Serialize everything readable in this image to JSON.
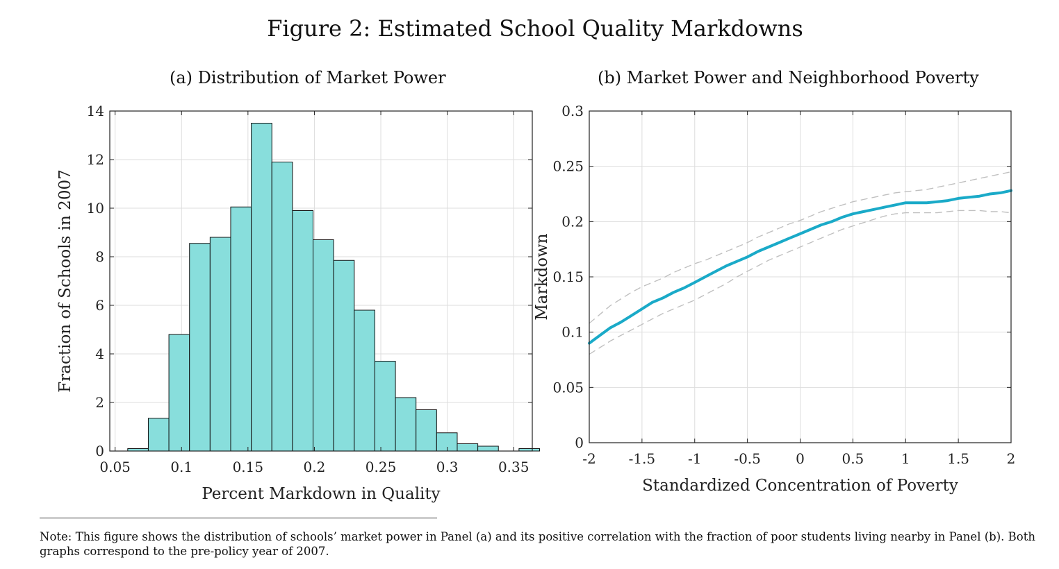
{
  "figure_title": "Figure 2: Estimated School Quality Markdowns",
  "note": "Note: This figure shows the distribution of schools’ market power in Panel (a) and its positive correlation with the fraction of poor students living nearby in Panel (b). Both graphs correspond to the pre-policy year of 2007.",
  "colors": {
    "bar_fill": "#88dedc",
    "bar_edge": "#111111",
    "line": "#1aaac8",
    "band": "#c0c0c0",
    "grid": "#dddddd"
  },
  "chart_data": [
    {
      "panel": "a",
      "type": "bar",
      "title": "(a) Distribution of Market Power",
      "xlabel": "Percent Markdown in Quality",
      "ylabel": "Fraction of Schools in 2007",
      "bin_width": 0.0155,
      "bin_left_edges": [
        0.0595,
        0.075,
        0.0905,
        0.106,
        0.1215,
        0.137,
        0.1525,
        0.168,
        0.1835,
        0.199,
        0.2145,
        0.23,
        0.2455,
        0.261,
        0.2765,
        0.292,
        0.3075,
        0.323,
        0.3385,
        0.354
      ],
      "values": [
        0.1,
        1.35,
        4.8,
        8.55,
        8.8,
        10.05,
        13.5,
        11.9,
        9.9,
        8.7,
        7.85,
        5.8,
        3.7,
        2.2,
        1.7,
        0.75,
        0.3,
        0.2,
        0,
        0.1
      ],
      "xlim": [
        0.046,
        0.364
      ],
      "ylim": [
        0,
        14
      ],
      "xticks": [
        0.05,
        0.1,
        0.15,
        0.2,
        0.25,
        0.3,
        0.35
      ],
      "xtick_labels": [
        "0.05",
        "0.1",
        "0.15",
        "0.2",
        "0.25",
        "0.3",
        "0.35"
      ],
      "yticks": [
        0,
        2,
        4,
        6,
        8,
        10,
        12,
        14
      ],
      "ytick_labels": [
        "0",
        "2",
        "4",
        "6",
        "8",
        "10",
        "12",
        "14"
      ],
      "grid": true
    },
    {
      "panel": "b",
      "type": "line",
      "title": "(b) Market Power and Neighborhood Poverty",
      "xlabel": "Standardized Concentration of Poverty",
      "ylabel": "Markdown",
      "xlim": [
        -2,
        2
      ],
      "ylim": [
        0,
        0.3
      ],
      "xticks": [
        -2,
        -1.5,
        -1,
        -0.5,
        0,
        0.5,
        1,
        1.5,
        2
      ],
      "xtick_labels": [
        "-2",
        "-1.5",
        "-1",
        "-0.5",
        "0",
        "0.5",
        "1",
        "1.5",
        "2"
      ],
      "yticks": [
        0,
        0.05,
        0.1,
        0.15,
        0.2,
        0.25,
        0.3
      ],
      "ytick_labels": [
        "0",
        "0.05",
        "0.1",
        "0.15",
        "0.2",
        "0.25",
        "0.3"
      ],
      "grid": true,
      "x": [
        -2,
        -1.9,
        -1.8,
        -1.7,
        -1.6,
        -1.5,
        -1.4,
        -1.3,
        -1.2,
        -1.1,
        -1.0,
        -0.9,
        -0.8,
        -0.7,
        -0.6,
        -0.5,
        -0.4,
        -0.3,
        -0.2,
        -0.1,
        0.0,
        0.1,
        0.2,
        0.3,
        0.4,
        0.5,
        0.6,
        0.7,
        0.8,
        0.9,
        1.0,
        1.1,
        1.2,
        1.3,
        1.4,
        1.5,
        1.6,
        1.7,
        1.8,
        1.9,
        2.0
      ],
      "series": [
        {
          "role": "estimate",
          "values": [
            0.09,
            0.097,
            0.104,
            0.109,
            0.115,
            0.121,
            0.127,
            0.131,
            0.136,
            0.14,
            0.145,
            0.15,
            0.155,
            0.16,
            0.164,
            0.168,
            0.173,
            0.177,
            0.181,
            0.185,
            0.189,
            0.193,
            0.197,
            0.2,
            0.204,
            0.207,
            0.209,
            0.211,
            0.213,
            0.215,
            0.217,
            0.217,
            0.217,
            0.218,
            0.219,
            0.221,
            0.222,
            0.223,
            0.225,
            0.226,
            0.228
          ]
        },
        {
          "role": "upper_band",
          "values": [
            0.108,
            0.116,
            0.124,
            0.13,
            0.136,
            0.141,
            0.145,
            0.149,
            0.154,
            0.158,
            0.162,
            0.165,
            0.169,
            0.173,
            0.177,
            0.181,
            0.186,
            0.19,
            0.194,
            0.198,
            0.201,
            0.205,
            0.209,
            0.212,
            0.215,
            0.218,
            0.22,
            0.222,
            0.224,
            0.226,
            0.227,
            0.228,
            0.229,
            0.231,
            0.233,
            0.235,
            0.237,
            0.239,
            0.241,
            0.243,
            0.245
          ]
        },
        {
          "role": "lower_band",
          "values": [
            0.08,
            0.086,
            0.092,
            0.097,
            0.102,
            0.107,
            0.112,
            0.117,
            0.121,
            0.125,
            0.129,
            0.134,
            0.139,
            0.144,
            0.15,
            0.155,
            0.16,
            0.165,
            0.169,
            0.173,
            0.177,
            0.181,
            0.185,
            0.189,
            0.193,
            0.196,
            0.199,
            0.202,
            0.205,
            0.207,
            0.208,
            0.208,
            0.208,
            0.208,
            0.209,
            0.21,
            0.21,
            0.21,
            0.209,
            0.209,
            0.208
          ]
        }
      ]
    }
  ]
}
